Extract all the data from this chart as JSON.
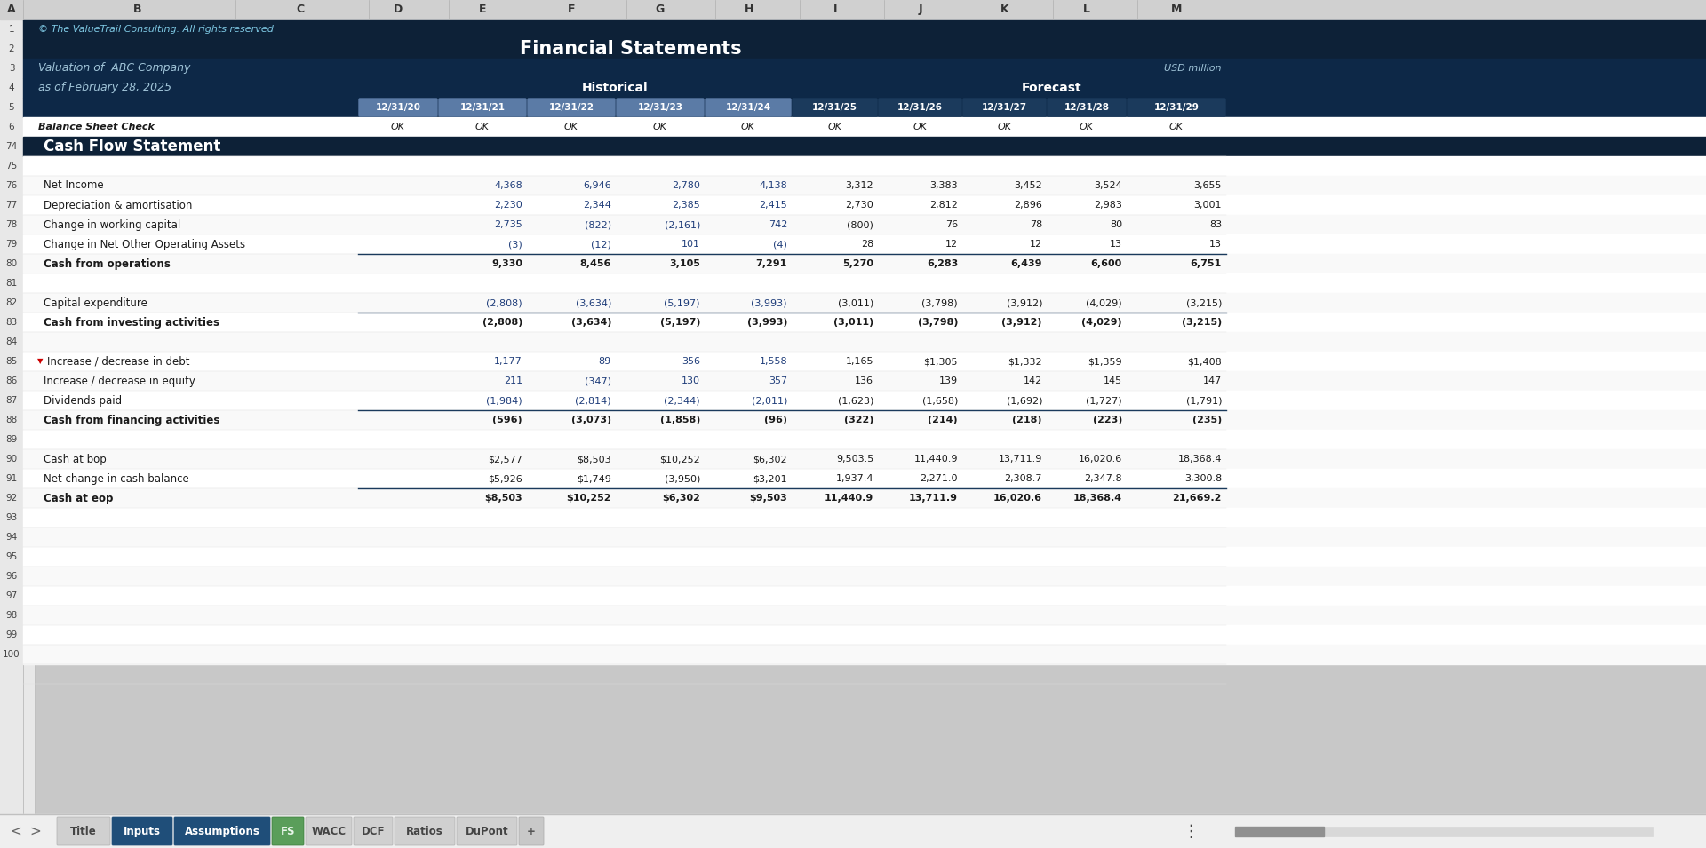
{
  "title": "Financial Statements",
  "copyright": "© The ValueTrail Consulting. All rights reserved",
  "valuation_of": "Valuation of  ABC Company",
  "as_of": "as of February 28, 2025",
  "usd_note": "USD million",
  "section_header": "Cash Flow Statement",
  "historical_label": "Historical",
  "forecast_label": "Forecast",
  "col_headers": [
    "12/31/20",
    "12/31/21",
    "12/31/22",
    "12/31/23",
    "12/31/24",
    "12/31/25",
    "12/31/26",
    "12/31/27",
    "12/31/28",
    "12/31/29"
  ],
  "balance_check_label": "Balance Sheet Check",
  "balance_check_values": [
    "OK",
    "OK",
    "OK",
    "OK",
    "OK",
    "OK",
    "OK",
    "OK",
    "OK",
    "OK"
  ],
  "spreadsheet_rows": [
    {
      "excel_row": 75,
      "label": "",
      "values": [
        "",
        "",
        "",
        "",
        "",
        "",
        "",
        "",
        "",
        ""
      ],
      "bold": false,
      "top_border": false,
      "is_blue": false
    },
    {
      "excel_row": 76,
      "label": "Net Income",
      "values": [
        "",
        "4,368",
        "6,946",
        "2,780",
        "4,138",
        "3,312",
        "3,383",
        "3,452",
        "3,524",
        "3,655"
      ],
      "bold": false,
      "top_border": false,
      "is_blue": true
    },
    {
      "excel_row": 77,
      "label": "Depreciation & amortisation",
      "values": [
        "",
        "2,230",
        "2,344",
        "2,385",
        "2,415",
        "2,730",
        "2,812",
        "2,896",
        "2,983",
        "3,001"
      ],
      "bold": false,
      "top_border": false,
      "is_blue": true
    },
    {
      "excel_row": 78,
      "label": "Change in working capital",
      "values": [
        "",
        "2,735",
        "(822)",
        "(2,161)",
        "742",
        "(800)",
        "76",
        "78",
        "80",
        "83"
      ],
      "bold": false,
      "top_border": false,
      "is_blue": true
    },
    {
      "excel_row": 79,
      "label": "Change in Net Other Operating Assets",
      "values": [
        "",
        "(3)",
        "(12)",
        "101",
        "(4)",
        "28",
        "12",
        "12",
        "13",
        "13"
      ],
      "bold": false,
      "top_border": false,
      "is_blue": true
    },
    {
      "excel_row": 80,
      "label": "Cash from operations",
      "values": [
        "",
        "9,330",
        "8,456",
        "3,105",
        "7,291",
        "5,270",
        "6,283",
        "6,439",
        "6,600",
        "6,751"
      ],
      "bold": true,
      "top_border": true,
      "is_blue": false
    },
    {
      "excel_row": 81,
      "label": "",
      "values": [
        "",
        "",
        "",
        "",
        "",
        "",
        "",
        "",
        "",
        ""
      ],
      "bold": false,
      "top_border": false,
      "is_blue": false
    },
    {
      "excel_row": 82,
      "label": "Capital expenditure",
      "values": [
        "",
        "(2,808)",
        "(3,634)",
        "(5,197)",
        "(3,993)",
        "(3,011)",
        "(3,798)",
        "(3,912)",
        "(4,029)",
        "(3,215)"
      ],
      "bold": false,
      "top_border": false,
      "is_blue": true
    },
    {
      "excel_row": 83,
      "label": "Cash from investing activities",
      "values": [
        "",
        "(2,808)",
        "(3,634)",
        "(5,197)",
        "(3,993)",
        "(3,011)",
        "(3,798)",
        "(3,912)",
        "(4,029)",
        "(3,215)"
      ],
      "bold": true,
      "top_border": true,
      "is_blue": false
    },
    {
      "excel_row": 84,
      "label": "",
      "values": [
        "",
        "",
        "",
        "",
        "",
        "",
        "",
        "",
        "",
        ""
      ],
      "bold": false,
      "top_border": false,
      "is_blue": false
    },
    {
      "excel_row": 85,
      "label": "Increase / decrease in debt",
      "values": [
        "",
        "1,177",
        "89",
        "356",
        "1,558",
        "1,165",
        "$1,305",
        "$1,332",
        "$1,359",
        "$1,408"
      ],
      "bold": false,
      "top_border": false,
      "is_blue": true,
      "red_marker": true
    },
    {
      "excel_row": 86,
      "label": "Increase / decrease in equity",
      "values": [
        "",
        "211",
        "(347)",
        "130",
        "357",
        "136",
        "139",
        "142",
        "145",
        "147"
      ],
      "bold": false,
      "top_border": false,
      "is_blue": true
    },
    {
      "excel_row": 87,
      "label": "Dividends paid",
      "values": [
        "",
        "(1,984)",
        "(2,814)",
        "(2,344)",
        "(2,011)",
        "(1,623)",
        "(1,658)",
        "(1,692)",
        "(1,727)",
        "(1,791)"
      ],
      "bold": false,
      "top_border": false,
      "is_blue": true
    },
    {
      "excel_row": 88,
      "label": "Cash from financing activities",
      "values": [
        "",
        "(596)",
        "(3,073)",
        "(1,858)",
        "(96)",
        "(322)",
        "(214)",
        "(218)",
        "(223)",
        "(235)"
      ],
      "bold": true,
      "top_border": true,
      "is_blue": false
    },
    {
      "excel_row": 89,
      "label": "",
      "values": [
        "",
        "",
        "",
        "",
        "",
        "",
        "",
        "",
        "",
        ""
      ],
      "bold": false,
      "top_border": false,
      "is_blue": false
    },
    {
      "excel_row": 90,
      "label": "Cash at bop",
      "values": [
        "",
        "$2,577",
        "$8,503",
        "$10,252",
        "$6,302",
        "9,503.5",
        "11,440.9",
        "13,711.9",
        "16,020.6",
        "18,368.4"
      ],
      "bold": false,
      "top_border": false,
      "is_blue": false
    },
    {
      "excel_row": 91,
      "label": "Net change in cash balance",
      "values": [
        "",
        "$5,926",
        "$1,749",
        "(3,950)",
        "$3,201",
        "1,937.4",
        "2,271.0",
        "2,308.7",
        "2,347.8",
        "3,300.8"
      ],
      "bold": false,
      "top_border": false,
      "is_blue": false
    },
    {
      "excel_row": 92,
      "label": "Cash at eop",
      "values": [
        "",
        "$8,503",
        "$10,252",
        "$6,302",
        "$9,503",
        "11,440.9",
        "13,711.9",
        "16,020.6",
        "18,368.4",
        "21,669.2"
      ],
      "bold": true,
      "top_border": true,
      "is_blue": false
    },
    {
      "excel_row": 93,
      "label": "",
      "values": [
        "",
        "",
        "",
        "",
        "",
        "",
        "",
        "",
        "",
        ""
      ],
      "bold": false,
      "top_border": false,
      "is_blue": false
    },
    {
      "excel_row": 94,
      "label": "",
      "values": [
        "",
        "",
        "",
        "",
        "",
        "",
        "",
        "",
        "",
        ""
      ],
      "bold": false,
      "top_border": false,
      "is_blue": false
    },
    {
      "excel_row": 95,
      "label": "",
      "values": [
        "",
        "",
        "",
        "",
        "",
        "",
        "",
        "",
        "",
        ""
      ],
      "bold": false,
      "top_border": false,
      "is_blue": false
    },
    {
      "excel_row": 96,
      "label": "",
      "values": [
        "",
        "",
        "",
        "",
        "",
        "",
        "",
        "",
        "",
        ""
      ],
      "bold": false,
      "top_border": false,
      "is_blue": false
    },
    {
      "excel_row": 97,
      "label": "",
      "values": [
        "",
        "",
        "",
        "",
        "",
        "",
        "",
        "",
        "",
        ""
      ],
      "bold": false,
      "top_border": false,
      "is_blue": false
    },
    {
      "excel_row": 98,
      "label": "",
      "values": [
        "",
        "",
        "",
        "",
        "",
        "",
        "",
        "",
        "",
        ""
      ],
      "bold": false,
      "top_border": false,
      "is_blue": false
    },
    {
      "excel_row": 99,
      "label": "",
      "values": [
        "",
        "",
        "",
        "",
        "",
        "",
        "",
        "",
        "",
        ""
      ],
      "bold": false,
      "top_border": false,
      "is_blue": false
    },
    {
      "excel_row": 100,
      "label": "",
      "values": [
        "",
        "",
        "",
        "",
        "",
        "",
        "",
        "",
        "",
        ""
      ],
      "bold": false,
      "top_border": false,
      "is_blue": false
    }
  ],
  "tab_labels": [
    "Title",
    "Inputs",
    "Assumptions",
    "FS",
    "WACC",
    "DCF",
    "Ratios",
    "DuPont",
    "+"
  ],
  "bg_dark": "#0D2137",
  "text_blue_hist": "#1F3D7A",
  "text_cyan": "#7EC8E3",
  "col_header_gray": "#D0D0D0",
  "row_num_bg": "#E8E8E8",
  "hist_pill_color": "#5B7BA6",
  "fore_pill_color": "#1B3A5C"
}
